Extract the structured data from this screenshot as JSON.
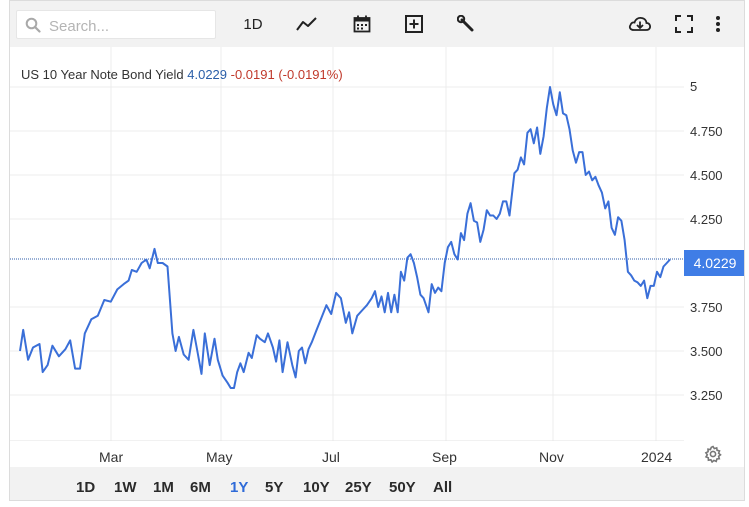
{
  "toolbar": {
    "search_placeholder": "Search...",
    "interval_label": "1D",
    "icons": [
      "search-icon",
      "line-chart-icon",
      "calendar-icon",
      "add-indicator-icon",
      "wrench-icon",
      "cloud-download-icon",
      "fullscreen-icon",
      "more-vertical-icon"
    ]
  },
  "legend": {
    "name": "US 10 Year Note Bond Yield",
    "value": "4.0229",
    "change": "-0.0191 (-0.0191%)"
  },
  "ranges": [
    {
      "label": "1D",
      "active": false
    },
    {
      "label": "1W",
      "active": false
    },
    {
      "label": "1M",
      "active": false
    },
    {
      "label": "6M",
      "active": false
    },
    {
      "label": "1Y",
      "active": true
    },
    {
      "label": "5Y",
      "active": false
    },
    {
      "label": "10Y",
      "active": false
    },
    {
      "label": "25Y",
      "active": false
    },
    {
      "label": "50Y",
      "active": false
    },
    {
      "label": "All",
      "active": false
    }
  ],
  "colors": {
    "line": "#3a6fd8",
    "accent": "#2f6bd8",
    "price_tag": "#3f7de6",
    "change": "#c0392b"
  },
  "chart_data": {
    "type": "line",
    "title": "",
    "series": [
      {
        "name": "US 10 Year Note Bond Yield",
        "points": [
          [
            0,
            3.5
          ],
          [
            2,
            3.62
          ],
          [
            5,
            3.45
          ],
          [
            8,
            3.52
          ],
          [
            12,
            3.54
          ],
          [
            14,
            3.38
          ],
          [
            17,
            3.42
          ],
          [
            20,
            3.53
          ],
          [
            24,
            3.47
          ],
          [
            28,
            3.51
          ],
          [
            31,
            3.56
          ],
          [
            34,
            3.4
          ],
          [
            37,
            3.4
          ],
          [
            40,
            3.6
          ],
          [
            44,
            3.68
          ],
          [
            48,
            3.7
          ],
          [
            52,
            3.79
          ],
          [
            56,
            3.78
          ],
          [
            60,
            3.85
          ],
          [
            64,
            3.88
          ],
          [
            67,
            3.9
          ],
          [
            69,
            3.96
          ],
          [
            72,
            3.95
          ],
          [
            75,
            4.0
          ],
          [
            78,
            4.02
          ],
          [
            80,
            3.97
          ],
          [
            83,
            4.08
          ],
          [
            85,
            4.0
          ],
          [
            88,
            4.0
          ],
          [
            91,
            3.98
          ],
          [
            94,
            3.6
          ],
          [
            96,
            3.5
          ],
          [
            98,
            3.58
          ],
          [
            101,
            3.48
          ],
          [
            104,
            3.45
          ],
          [
            107,
            3.62
          ],
          [
            109,
            3.52
          ],
          [
            112,
            3.37
          ],
          [
            114,
            3.6
          ],
          [
            117,
            3.42
          ],
          [
            120,
            3.57
          ],
          [
            122,
            3.45
          ],
          [
            125,
            3.36
          ],
          [
            128,
            3.32
          ],
          [
            130,
            3.29
          ],
          [
            132,
            3.29
          ],
          [
            134,
            3.38
          ],
          [
            136,
            3.43
          ],
          [
            138,
            3.38
          ],
          [
            141,
            3.49
          ],
          [
            143,
            3.46
          ],
          [
            146,
            3.59
          ],
          [
            148,
            3.57
          ],
          [
            151,
            3.55
          ],
          [
            153,
            3.6
          ],
          [
            156,
            3.52
          ],
          [
            158,
            3.44
          ],
          [
            160,
            3.56
          ],
          [
            162,
            3.38
          ],
          [
            165,
            3.55
          ],
          [
            168,
            3.42
          ],
          [
            170,
            3.35
          ],
          [
            172,
            3.5
          ],
          [
            174,
            3.52
          ],
          [
            176,
            3.43
          ],
          [
            178,
            3.51
          ],
          [
            180,
            3.55
          ],
          [
            183,
            3.62
          ],
          [
            186,
            3.69
          ],
          [
            189,
            3.76
          ],
          [
            192,
            3.71
          ],
          [
            195,
            3.83
          ],
          [
            198,
            3.8
          ],
          [
            201,
            3.66
          ],
          [
            203,
            3.72
          ],
          [
            205,
            3.6
          ],
          [
            208,
            3.7
          ],
          [
            211,
            3.73
          ],
          [
            214,
            3.76
          ],
          [
            217,
            3.8
          ],
          [
            219,
            3.84
          ],
          [
            221,
            3.75
          ],
          [
            223,
            3.81
          ],
          [
            225,
            3.72
          ],
          [
            227,
            3.83
          ],
          [
            229,
            3.72
          ],
          [
            231,
            3.82
          ],
          [
            233,
            3.72
          ],
          [
            235,
            3.95
          ],
          [
            237,
            3.9
          ],
          [
            239,
            4.03
          ],
          [
            241,
            4.05
          ],
          [
            243,
            4.0
          ],
          [
            245,
            3.92
          ],
          [
            247,
            3.82
          ],
          [
            249,
            3.8
          ],
          [
            252,
            3.72
          ],
          [
            254,
            3.88
          ],
          [
            256,
            3.83
          ],
          [
            258,
            3.86
          ],
          [
            260,
            3.84
          ],
          [
            262,
            4.0
          ],
          [
            264,
            4.09
          ],
          [
            266,
            4.12
          ],
          [
            268,
            4.05
          ],
          [
            270,
            4.02
          ],
          [
            272,
            4.17
          ],
          [
            274,
            4.13
          ],
          [
            276,
            4.28
          ],
          [
            278,
            4.34
          ],
          [
            280,
            4.24
          ],
          [
            282,
            4.23
          ],
          [
            284,
            4.12
          ],
          [
            286,
            4.19
          ],
          [
            288,
            4.3
          ],
          [
            290,
            4.27
          ],
          [
            292,
            4.27
          ],
          [
            294,
            4.25
          ],
          [
            296,
            4.28
          ],
          [
            298,
            4.35
          ],
          [
            300,
            4.35
          ],
          [
            302,
            4.27
          ],
          [
            305,
            4.51
          ],
          [
            307,
            4.53
          ],
          [
            309,
            4.6
          ],
          [
            311,
            4.56
          ],
          [
            313,
            4.74
          ],
          [
            315,
            4.76
          ],
          [
            317,
            4.68
          ],
          [
            319,
            4.77
          ],
          [
            321,
            4.62
          ],
          [
            323,
            4.72
          ],
          [
            325,
            4.88
          ],
          [
            327,
            5.0
          ],
          [
            329,
            4.9
          ],
          [
            331,
            4.84
          ],
          [
            333,
            4.97
          ],
          [
            335,
            4.85
          ],
          [
            337,
            4.84
          ],
          [
            339,
            4.76
          ],
          [
            341,
            4.64
          ],
          [
            343,
            4.57
          ],
          [
            345,
            4.63
          ],
          [
            347,
            4.63
          ],
          [
            349,
            4.5
          ],
          [
            351,
            4.52
          ],
          [
            353,
            4.47
          ],
          [
            355,
            4.49
          ],
          [
            357,
            4.44
          ],
          [
            359,
            4.4
          ],
          [
            361,
            4.31
          ],
          [
            363,
            4.35
          ],
          [
            365,
            4.2
          ],
          [
            367,
            4.16
          ],
          [
            369,
            4.26
          ],
          [
            371,
            4.24
          ],
          [
            373,
            4.13
          ],
          [
            375,
            3.95
          ],
          [
            377,
            3.93
          ],
          [
            379,
            3.9
          ],
          [
            381,
            3.89
          ],
          [
            383,
            3.87
          ],
          [
            385,
            3.9
          ],
          [
            387,
            3.8
          ],
          [
            389,
            3.87
          ],
          [
            391,
            3.87
          ],
          [
            393,
            3.95
          ],
          [
            395,
            3.92
          ],
          [
            397,
            3.98
          ],
          [
            399,
            4.0
          ],
          [
            401,
            4.02
          ]
        ]
      }
    ],
    "y_ticks": [
      "5",
      "4.750",
      "4.500",
      "4.250",
      "3.750",
      "3.500",
      "3.250"
    ],
    "x_ticks": [
      "Mar",
      "May",
      "Jul",
      "Sep",
      "Nov",
      "2024"
    ],
    "y_range": [
      3.0,
      5.25
    ],
    "current_value_label": "4.0229",
    "current_value": 4.0229,
    "grid": true,
    "legend": "top-left"
  }
}
